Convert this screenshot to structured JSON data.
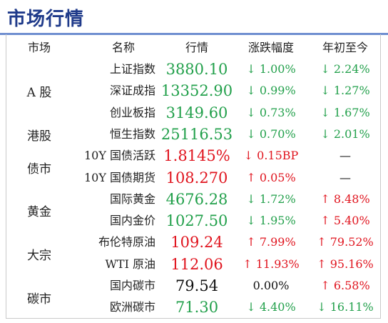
{
  "title": "市场行情",
  "headers": {
    "market": "市场",
    "name": "名称",
    "price": "行情",
    "change": "涨跌幅度",
    "ytd": "年初至今"
  },
  "categories": [
    {
      "label": "A 股"
    },
    {
      "label": "港股"
    },
    {
      "label": "债市"
    },
    {
      "label": "黄金"
    },
    {
      "label": "大宗"
    },
    {
      "label": "碳市"
    }
  ],
  "rows": [
    {
      "name": "上证指数",
      "price": "3880.10",
      "change": "↓ 1.00%",
      "ytd": "↓ 2.24%",
      "price_color": "green",
      "change_color": "green",
      "ytd_color": "green"
    },
    {
      "name": "深证成指",
      "price": "13352.90",
      "change": "↓ 0.99%",
      "ytd": "↓ 1.27%",
      "price_color": "green",
      "change_color": "green",
      "ytd_color": "green"
    },
    {
      "name": "创业板指",
      "price": "3149.60",
      "change": "↓ 0.73%",
      "ytd": "↓ 1.67%",
      "price_color": "green",
      "change_color": "green",
      "ytd_color": "green"
    },
    {
      "name": "恒生指数",
      "price": "25116.53",
      "change": "↓ 0.70%",
      "ytd": "↓ 2.01%",
      "price_color": "green",
      "change_color": "green",
      "ytd_color": "green"
    },
    {
      "name": "10Y 国债活跃",
      "price": "1.8145%",
      "change": "↓ 0.15BP",
      "ytd": "—",
      "price_color": "red",
      "change_color": "red",
      "ytd_color": "black"
    },
    {
      "name": "10Y 国债期货",
      "price": "108.270",
      "change": "↑ 0.05%",
      "ytd": "—",
      "price_color": "red",
      "change_color": "red",
      "ytd_color": "black"
    },
    {
      "name": "国际黄金",
      "price": "4676.28",
      "change": "↓ 1.72%",
      "ytd": "↑ 8.48%",
      "price_color": "green",
      "change_color": "green",
      "ytd_color": "red"
    },
    {
      "name": "国内金价",
      "price": "1027.50",
      "change": "↓ 1.95%",
      "ytd": "↑ 5.40%",
      "price_color": "green",
      "change_color": "green",
      "ytd_color": "red"
    },
    {
      "name": "布伦特原油",
      "price": "109.24",
      "change": "↑ 7.99%",
      "ytd": "↑ 79.52%",
      "price_color": "red",
      "change_color": "red",
      "ytd_color": "red"
    },
    {
      "name": "WTI 原油",
      "price": "112.06",
      "change": "↑ 11.93%",
      "ytd": "↑ 95.16%",
      "price_color": "red",
      "change_color": "red",
      "ytd_color": "red"
    },
    {
      "name": "国内碳市",
      "price": "79.54",
      "change": "0.00%",
      "ytd": "↑ 6.58%",
      "price_color": "black",
      "change_color": "black",
      "ytd_color": "red"
    },
    {
      "name": "欧洲碳市",
      "price": "71.30",
      "change": "↓ 4.40%",
      "ytd": "↓ 16.11%",
      "price_color": "green",
      "change_color": "green",
      "ytd_color": "green"
    }
  ],
  "colors": {
    "green": "#22a04b",
    "red": "#e0141e",
    "black": "#111111",
    "title": "#1f3a8a",
    "title_rule": "#6f8fd0"
  }
}
